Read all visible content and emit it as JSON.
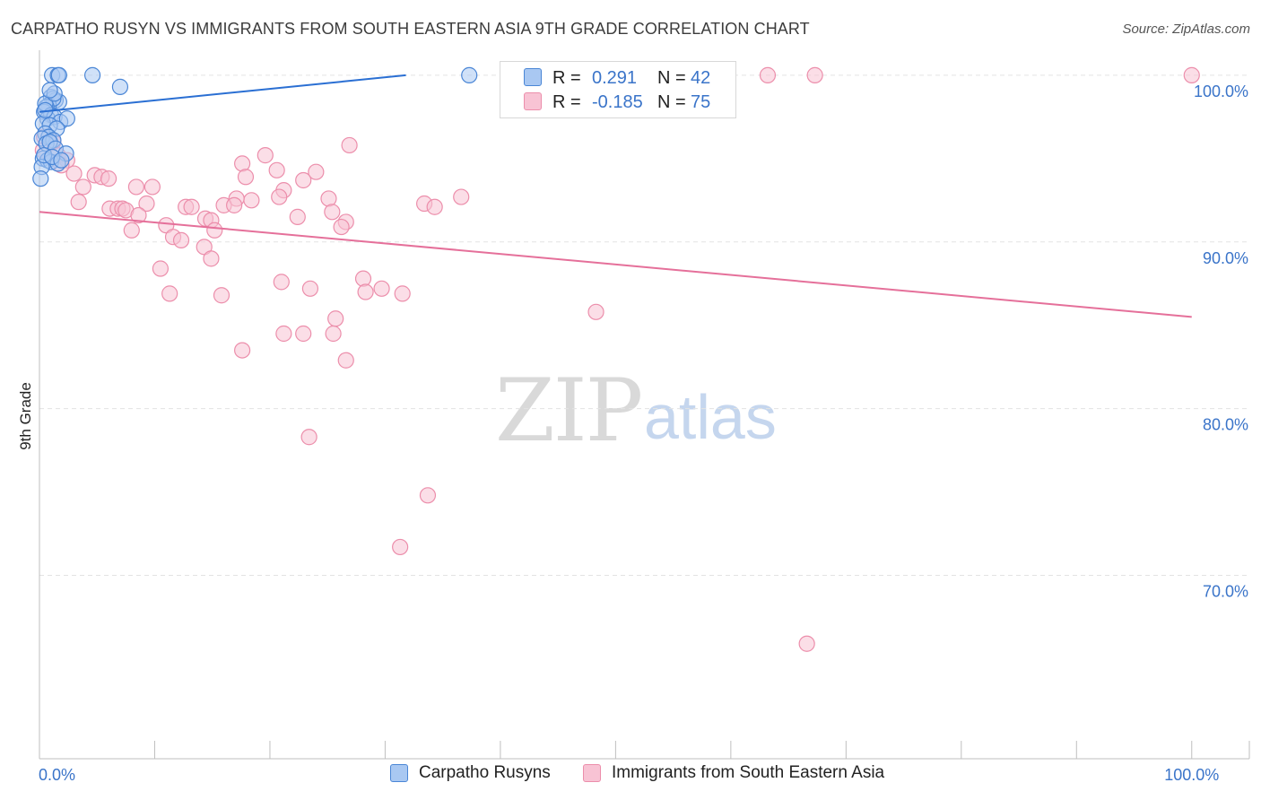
{
  "title": "CARPATHO RUSYN VS IMMIGRANTS FROM SOUTH EASTERN ASIA 9TH GRADE CORRELATION CHART",
  "source": "Source: ZipAtlas.com",
  "watermark": {
    "zip": "ZIP",
    "atlas": "atlas"
  },
  "legend": {
    "r_label": "R =",
    "n_label": "N =",
    "series1": {
      "r": "0.291",
      "n": "42"
    },
    "series2": {
      "r": "-0.185",
      "n": "75"
    }
  },
  "bottom_legend": {
    "series1": "Carpatho Rusyns",
    "series2": "Immigrants from South Eastern Asia"
  },
  "colors": {
    "series1_fill": "#a9c8f2",
    "series1_stroke": "#4a86d6",
    "series1_line": "#2a6fd3",
    "series2_fill": "#f8c3d4",
    "series2_stroke": "#ec8eab",
    "series2_line": "#e5709a",
    "tick_text": "#3a74c9",
    "grid": "#e3e3e3"
  },
  "chart_data": {
    "type": "scatter",
    "title": "CARPATHO RUSYN VS IMMIGRANTS FROM SOUTH EASTERN ASIA 9TH GRADE CORRELATION CHART",
    "xlabel": "",
    "ylabel": "9th Grade",
    "xlim": [
      0,
      105
    ],
    "ylim": [
      59,
      101.5
    ],
    "y_ticks": [
      100,
      90,
      80,
      70
    ],
    "y_tick_labels": [
      "100.0%",
      "90.0%",
      "80.0%",
      "70.0%"
    ],
    "x_tick_labels": [
      "0.0%",
      "100.0%"
    ],
    "x_label_values": [
      0,
      100
    ],
    "x_minor_ticks": [
      0,
      10,
      20,
      30,
      40,
      50,
      60,
      70,
      80,
      90,
      100,
      105
    ],
    "grid": true,
    "legend_position": "top-center",
    "series": [
      {
        "name": "Carpatho Rusyns",
        "trend": {
          "x": [
            0,
            31.8
          ],
          "y": [
            97.8,
            100
          ]
        },
        "points": [
          [
            1.1,
            100
          ],
          [
            1.6,
            100
          ],
          [
            1.7,
            100
          ],
          [
            4.6,
            100
          ],
          [
            37.3,
            100
          ],
          [
            7.0,
            99.3
          ],
          [
            1.0,
            98.7
          ],
          [
            1.4,
            98.5
          ],
          [
            1.7,
            98.4
          ],
          [
            0.8,
            98.2
          ],
          [
            1.2,
            98.6
          ],
          [
            0.6,
            98.1
          ],
          [
            0.4,
            97.8
          ],
          [
            0.5,
            98.3
          ],
          [
            1.0,
            97.6
          ],
          [
            0.7,
            97.4
          ],
          [
            1.3,
            97.5
          ],
          [
            1.8,
            97.2
          ],
          [
            2.4,
            97.4
          ],
          [
            0.3,
            97.1
          ],
          [
            0.9,
            97.0
          ],
          [
            1.5,
            96.8
          ],
          [
            0.5,
            96.5
          ],
          [
            0.8,
            96.3
          ],
          [
            0.2,
            96.2
          ],
          [
            1.2,
            96.1
          ],
          [
            0.6,
            95.9
          ],
          [
            0.9,
            96.0
          ],
          [
            1.4,
            95.6
          ],
          [
            2.3,
            95.3
          ],
          [
            0.3,
            95.0
          ],
          [
            0.7,
            94.9
          ],
          [
            1.0,
            94.8
          ],
          [
            1.6,
            94.7
          ],
          [
            0.2,
            94.5
          ],
          [
            0.4,
            95.2
          ],
          [
            1.1,
            95.1
          ],
          [
            1.9,
            94.9
          ],
          [
            0.1,
            93.8
          ],
          [
            0.5,
            97.9
          ],
          [
            1.3,
            98.9
          ],
          [
            0.9,
            99.1
          ]
        ]
      },
      {
        "name": "Immigrants from South Eastern Asia",
        "trend": {
          "x": [
            0,
            100
          ],
          "y": [
            91.8,
            85.5
          ]
        },
        "points": [
          [
            63.2,
            100
          ],
          [
            67.3,
            100
          ],
          [
            100,
            100
          ],
          [
            0.4,
            96.3
          ],
          [
            1.2,
            96.0
          ],
          [
            1.6,
            95.2
          ],
          [
            2.4,
            94.9
          ],
          [
            1.9,
            94.6
          ],
          [
            0.3,
            95.5
          ],
          [
            3.0,
            94.1
          ],
          [
            4.8,
            94.0
          ],
          [
            5.4,
            93.9
          ],
          [
            6.0,
            93.8
          ],
          [
            3.8,
            93.3
          ],
          [
            8.4,
            93.3
          ],
          [
            9.8,
            93.3
          ],
          [
            3.4,
            92.4
          ],
          [
            9.3,
            92.3
          ],
          [
            6.1,
            92.0
          ],
          [
            6.8,
            92.0
          ],
          [
            7.2,
            92.0
          ],
          [
            7.5,
            91.9
          ],
          [
            12.7,
            92.1
          ],
          [
            13.2,
            92.1
          ],
          [
            14.4,
            91.4
          ],
          [
            14.9,
            91.3
          ],
          [
            11.0,
            91.0
          ],
          [
            11.6,
            90.3
          ],
          [
            12.3,
            90.1
          ],
          [
            15.2,
            90.7
          ],
          [
            8.0,
            90.7
          ],
          [
            8.6,
            91.6
          ],
          [
            14.3,
            89.7
          ],
          [
            14.9,
            89.0
          ],
          [
            10.5,
            88.4
          ],
          [
            11.3,
            86.9
          ],
          [
            15.8,
            86.8
          ],
          [
            17.6,
            94.7
          ],
          [
            19.6,
            95.2
          ],
          [
            20.6,
            94.3
          ],
          [
            24.0,
            94.2
          ],
          [
            17.9,
            93.9
          ],
          [
            21.2,
            93.1
          ],
          [
            22.9,
            93.7
          ],
          [
            18.4,
            92.5
          ],
          [
            20.8,
            92.7
          ],
          [
            25.1,
            92.6
          ],
          [
            25.4,
            91.8
          ],
          [
            22.4,
            91.5
          ],
          [
            26.6,
            91.2
          ],
          [
            26.2,
            90.9
          ],
          [
            17.1,
            92.6
          ],
          [
            16.0,
            92.2
          ],
          [
            16.9,
            92.2
          ],
          [
            26.9,
            95.8
          ],
          [
            33.4,
            92.3
          ],
          [
            34.3,
            92.1
          ],
          [
            36.6,
            92.7
          ],
          [
            23.5,
            87.2
          ],
          [
            21.0,
            87.6
          ],
          [
            28.1,
            87.8
          ],
          [
            29.7,
            87.2
          ],
          [
            31.5,
            86.9
          ],
          [
            28.3,
            87.0
          ],
          [
            25.7,
            85.4
          ],
          [
            21.2,
            84.5
          ],
          [
            22.9,
            84.5
          ],
          [
            25.5,
            84.5
          ],
          [
            17.6,
            83.5
          ],
          [
            26.6,
            82.9
          ],
          [
            23.4,
            78.3
          ],
          [
            48.3,
            85.8
          ],
          [
            33.7,
            74.8
          ],
          [
            31.3,
            71.7
          ],
          [
            66.6,
            65.9
          ]
        ]
      }
    ]
  }
}
